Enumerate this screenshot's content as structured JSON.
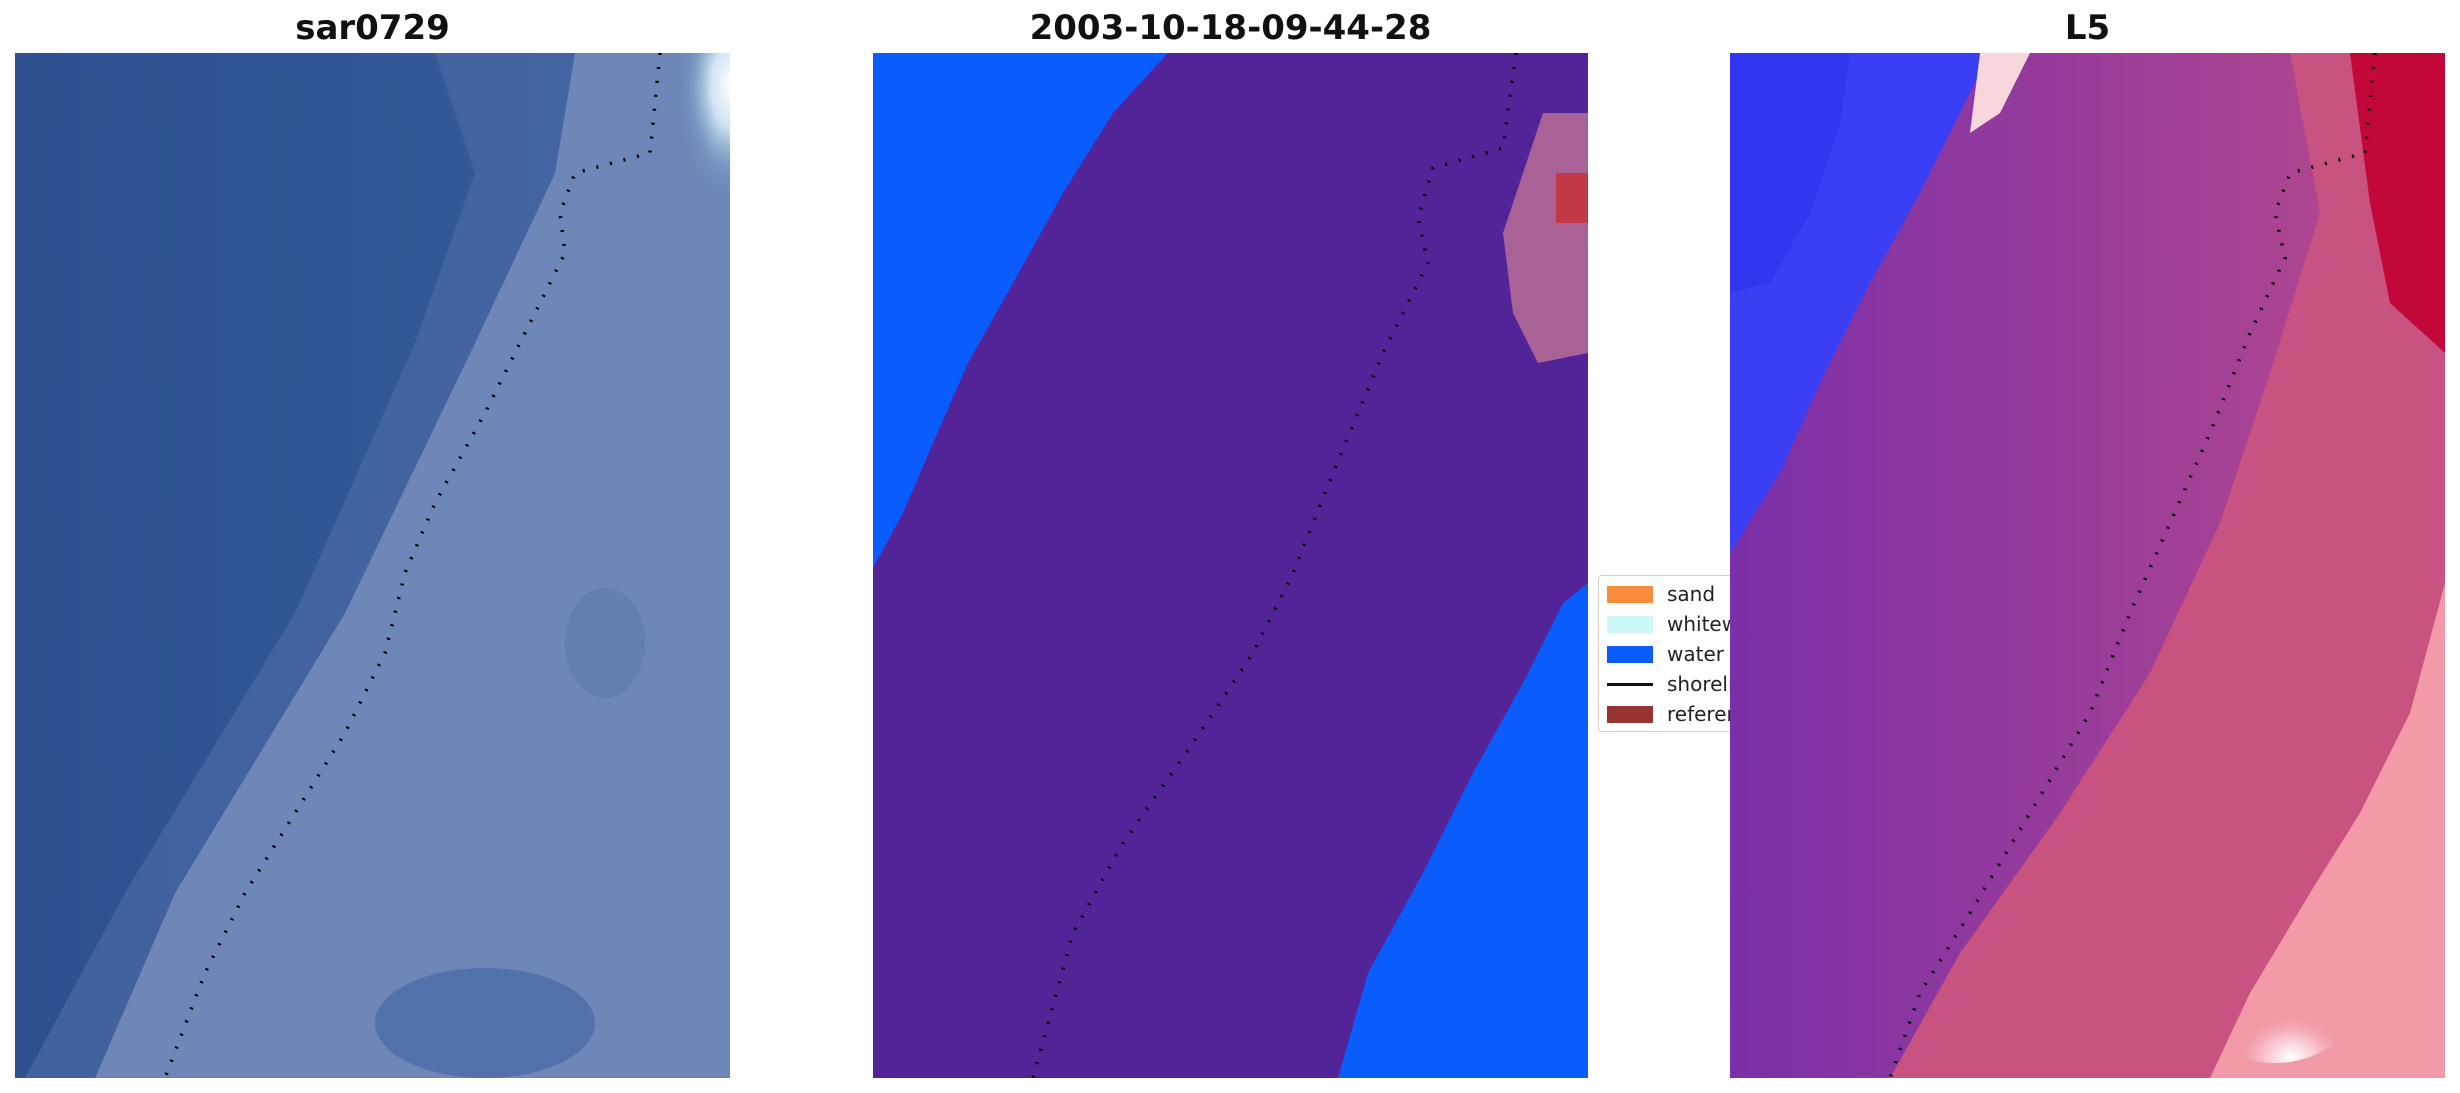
{
  "panels": [
    {
      "title": "sar0729"
    },
    {
      "title": "2003-10-18-09-44-28"
    },
    {
      "title": "L5"
    }
  ],
  "legend": {
    "items": [
      {
        "label": "sand",
        "color": "#f98d3b",
        "kind": "patch"
      },
      {
        "label": "whitewater",
        "color": "#ccf9f7",
        "kind": "patch"
      },
      {
        "label": "water",
        "color": "#0b5cfd",
        "kind": "patch"
      },
      {
        "label": "shoreline",
        "color": "#111111",
        "kind": "line"
      },
      {
        "label": "reference",
        "color": "#973330",
        "kind": "patch"
      }
    ]
  },
  "colors": {
    "rgb_water": "#2f5793",
    "rgb_beach": "#6f86b6",
    "class_background": "#532398",
    "class_water": "#0b5cfd",
    "mndwi_water_blue": "#2a36f0",
    "mndwi_purple": "#6f2aa8",
    "mndwi_pink": "#c8517f",
    "mndwi_red": "#c2073a"
  }
}
